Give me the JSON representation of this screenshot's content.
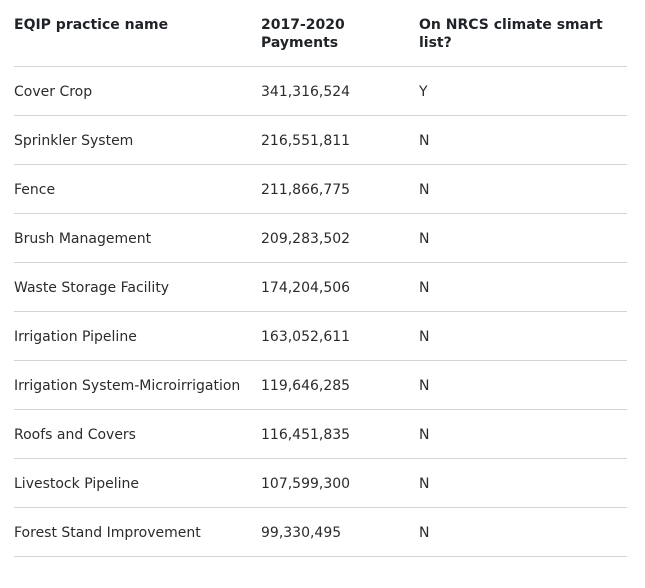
{
  "table": {
    "headers": [
      "EQIP practice name",
      "2017-2020 Payments",
      "On NRCS climate smart list?"
    ],
    "rows": [
      {
        "name": "Cover Crop",
        "payments": "341,316,524",
        "climate_smart": "Y"
      },
      {
        "name": "Sprinkler System",
        "payments": "216,551,811",
        "climate_smart": "N"
      },
      {
        "name": "Fence",
        "payments": "211,866,775",
        "climate_smart": "N"
      },
      {
        "name": "Brush Management",
        "payments": "209,283,502",
        "climate_smart": "N"
      },
      {
        "name": "Waste Storage Facility",
        "payments": "174,204,506",
        "climate_smart": "N"
      },
      {
        "name": "Irrigation Pipeline",
        "payments": "163,052,611",
        "climate_smart": "N"
      },
      {
        "name": "Irrigation System-Microirrigation",
        "payments": "119,646,285",
        "climate_smart": "N"
      },
      {
        "name": "Roofs and Covers",
        "payments": "116,451,835",
        "climate_smart": "N"
      },
      {
        "name": "Livestock Pipeline",
        "payments": "107,599,300",
        "climate_smart": "N"
      },
      {
        "name": "Forest Stand Improvement",
        "payments": "99,330,495",
        "climate_smart": "N"
      }
    ]
  }
}
